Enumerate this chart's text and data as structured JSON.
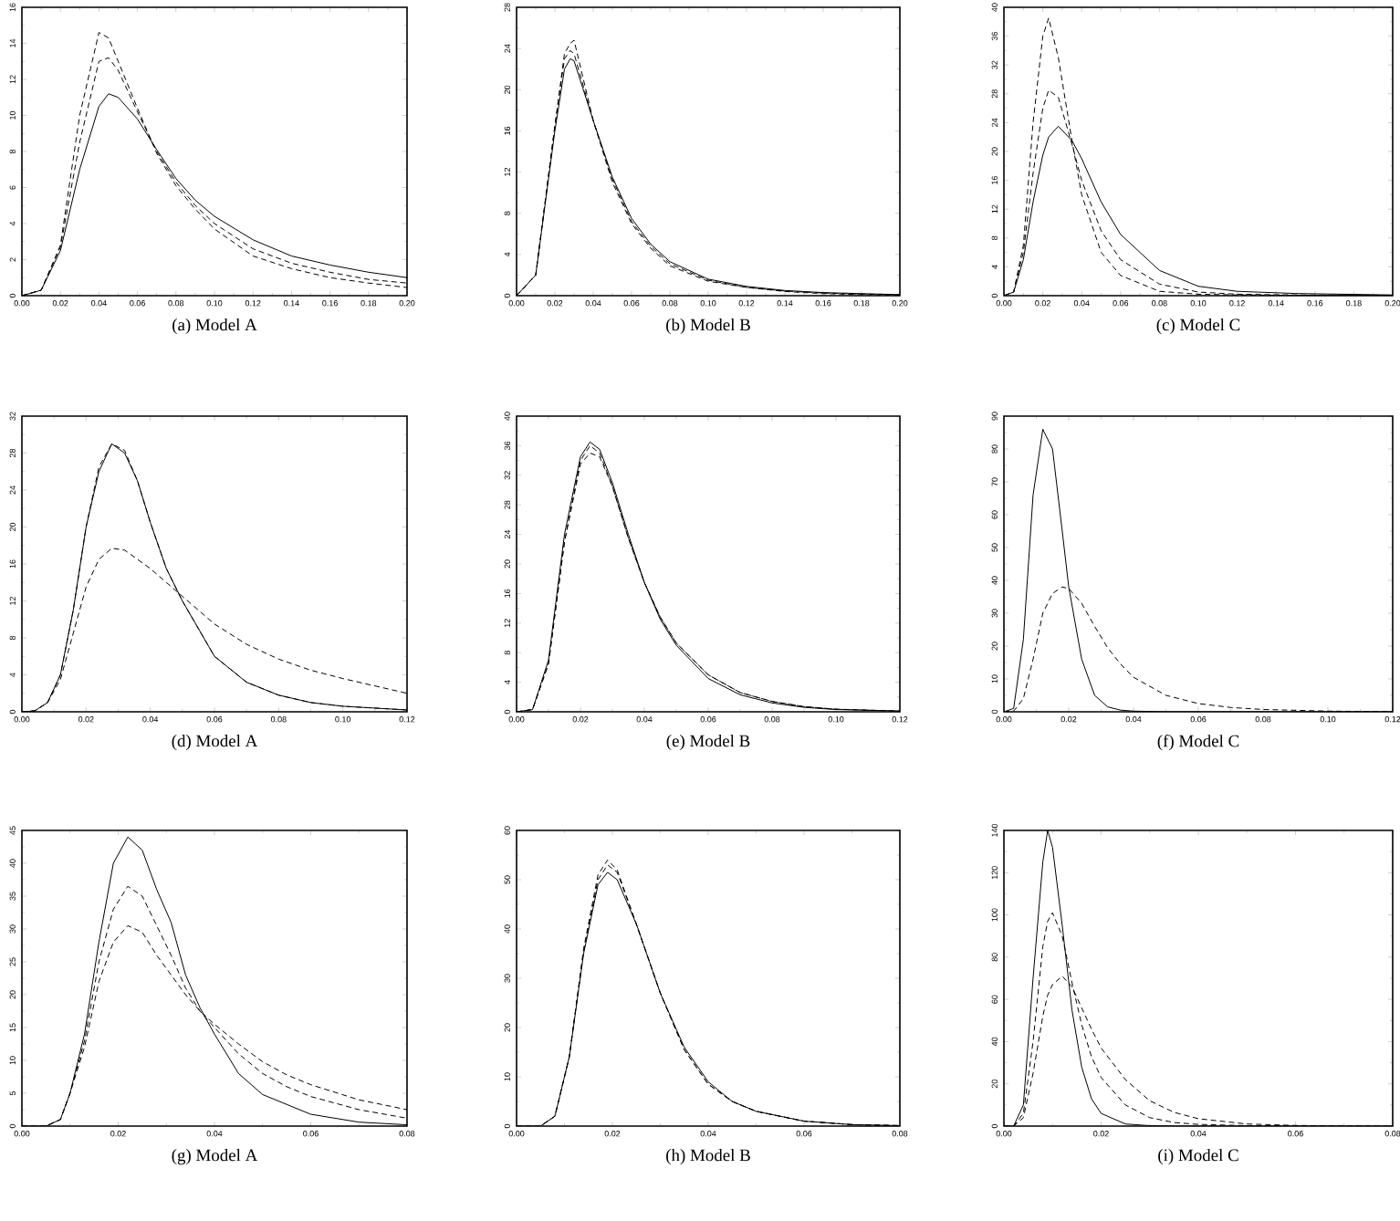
{
  "chart_data": [
    {
      "type": "line",
      "title": "(a) Model A",
      "x": [
        0,
        0.01,
        0.02,
        0.03,
        0.04,
        0.045,
        0.05,
        0.06,
        0.07,
        0.08,
        0.09,
        0.1,
        0.12,
        0.14,
        0.16,
        0.18,
        0.2
      ],
      "series": [
        {
          "color": "#000000",
          "line_style": "solid",
          "values": [
            0,
            0.3,
            2.5,
            7,
            10.5,
            11.2,
            11,
            9.8,
            8.1,
            6.5,
            5.3,
            4.4,
            3.1,
            2.2,
            1.7,
            1.3,
            1.0
          ]
        },
        {
          "color": "#000000",
          "line_style": "dashed",
          "values": [
            0,
            0.3,
            2.7,
            8.5,
            13,
            13.2,
            12.5,
            10.2,
            8.0,
            6.3,
            5.0,
            4.0,
            2.6,
            1.8,
            1.3,
            0.9,
            0.7
          ]
        },
        {
          "color": "#000000",
          "line_style": "dashed",
          "values": [
            0,
            0.3,
            2.8,
            10,
            14.6,
            14.3,
            13,
            10.4,
            7.9,
            6.1,
            4.8,
            3.7,
            2.2,
            1.5,
            1.0,
            0.7,
            0.45
          ]
        }
      ],
      "xlim": [
        0,
        0.2
      ],
      "ylim": [
        0,
        16
      ],
      "xticks": [
        {
          "value": 0,
          "label": "0.00"
        },
        {
          "value": 0.02,
          "label": "0.02"
        },
        {
          "value": 0.04,
          "label": "0.04"
        },
        {
          "value": 0.06,
          "label": "0.06"
        },
        {
          "value": 0.08,
          "label": "0.08"
        },
        {
          "value": 0.1,
          "label": "0.10"
        },
        {
          "value": 0.12,
          "label": "0.12"
        },
        {
          "value": 0.14,
          "label": "0.14"
        },
        {
          "value": 0.16,
          "label": "0.16"
        },
        {
          "value": 0.18,
          "label": "0.18"
        },
        {
          "value": 0.2,
          "label": "0.20"
        }
      ],
      "yticks": [
        0,
        2,
        4,
        6,
        8,
        10,
        12,
        14,
        16
      ]
    },
    {
      "type": "line",
      "title": "(b) Model B",
      "x": [
        0,
        0.01,
        0.02,
        0.025,
        0.028,
        0.03,
        0.04,
        0.05,
        0.06,
        0.07,
        0.08,
        0.1,
        0.12,
        0.14,
        0.16,
        0.18,
        0.2
      ],
      "series": [
        {
          "color": "#000000",
          "line_style": "solid",
          "values": [
            0,
            2,
            16,
            22,
            23,
            22.8,
            17,
            11.5,
            7.5,
            5,
            3.3,
            1.6,
            0.9,
            0.5,
            0.3,
            0.2,
            0.1
          ]
        },
        {
          "color": "#000000",
          "line_style": "dashed",
          "values": [
            0,
            2,
            16.5,
            23,
            23.8,
            23.5,
            17,
            11.3,
            7.2,
            4.8,
            3.1,
            1.5,
            0.8,
            0.45,
            0.25,
            0.15,
            0.1
          ]
        },
        {
          "color": "#000000",
          "line_style": "dashed",
          "values": [
            0,
            2,
            16.5,
            23.5,
            24.5,
            24.8,
            17,
            11,
            7,
            4.6,
            2.9,
            1.4,
            0.8,
            0.4,
            0.2,
            0.1,
            0.05
          ]
        }
      ],
      "xlim": [
        0,
        0.2
      ],
      "ylim": [
        0,
        28
      ],
      "xticks": [
        {
          "value": 0,
          "label": "0.00"
        },
        {
          "value": 0.02,
          "label": "0.02"
        },
        {
          "value": 0.04,
          "label": "0.04"
        },
        {
          "value": 0.06,
          "label": "0.06"
        },
        {
          "value": 0.08,
          "label": "0.08"
        },
        {
          "value": 0.1,
          "label": "0.10"
        },
        {
          "value": 0.12,
          "label": "0.12"
        },
        {
          "value": 0.14,
          "label": "0.14"
        },
        {
          "value": 0.16,
          "label": "0.16"
        },
        {
          "value": 0.18,
          "label": "0.18"
        },
        {
          "value": 0.2,
          "label": "0.20"
        }
      ],
      "yticks": [
        0,
        4,
        8,
        12,
        16,
        20,
        24,
        28
      ]
    },
    {
      "type": "line",
      "title": "(c) Model C",
      "x": [
        0,
        0.005,
        0.01,
        0.015,
        0.02,
        0.023,
        0.028,
        0.035,
        0.04,
        0.05,
        0.06,
        0.08,
        0.1,
        0.12,
        0.15,
        0.2
      ],
      "series": [
        {
          "color": "#000000",
          "line_style": "solid",
          "values": [
            0,
            0.5,
            5,
            13,
            19.5,
            22,
            23.5,
            21.5,
            19,
            13,
            8.5,
            3.5,
            1.3,
            0.6,
            0.3,
            0.1
          ]
        },
        {
          "color": "#000000",
          "line_style": "dashed",
          "values": [
            0,
            0.5,
            6,
            17,
            26,
            28.5,
            27.5,
            21,
            16,
            9,
            5,
            1.6,
            0.5,
            0.2,
            0.1,
            0.05
          ]
        },
        {
          "color": "#000000",
          "line_style": "dashed",
          "values": [
            0,
            0.5,
            7,
            24,
            36,
            38.5,
            33,
            21.5,
            14,
            6,
            2.8,
            0.6,
            0.2,
            0.1,
            0.05,
            0.02
          ]
        }
      ],
      "xlim": [
        0,
        0.2
      ],
      "ylim": [
        0,
        40
      ],
      "xticks": [
        {
          "value": 0,
          "label": "0.00"
        },
        {
          "value": 0.02,
          "label": "0.02"
        },
        {
          "value": 0.04,
          "label": "0.04"
        },
        {
          "value": 0.06,
          "label": "0.06"
        },
        {
          "value": 0.08,
          "label": "0.08"
        },
        {
          "value": 0.1,
          "label": "0.10"
        },
        {
          "value": 0.12,
          "label": "0.12"
        },
        {
          "value": 0.14,
          "label": "0.14"
        },
        {
          "value": 0.16,
          "label": "0.16"
        },
        {
          "value": 0.18,
          "label": "0.18"
        },
        {
          "value": 0.2,
          "label": "0.20"
        }
      ],
      "yticks": [
        0,
        4,
        8,
        12,
        16,
        20,
        24,
        28,
        32,
        36,
        40
      ]
    },
    {
      "type": "line",
      "title": "(d) Model A",
      "x": [
        0,
        0.004,
        0.008,
        0.012,
        0.016,
        0.02,
        0.024,
        0.028,
        0.032,
        0.036,
        0.04,
        0.045,
        0.05,
        0.06,
        0.07,
        0.08,
        0.09,
        0.1,
        0.12
      ],
      "series": [
        {
          "color": "#000000",
          "line_style": "solid",
          "values": [
            0,
            0.1,
            1,
            4,
            11,
            20,
            26,
            29,
            28,
            25,
            20.5,
            15.5,
            12,
            6,
            3.2,
            1.8,
            1,
            0.6,
            0.2
          ]
        },
        {
          "color": "#000000",
          "line_style": "dashed",
          "values": [
            0,
            0.1,
            1,
            4,
            11,
            20,
            26.5,
            29,
            28.3,
            25,
            20.5,
            15.5,
            12,
            6,
            3.2,
            1.8,
            1,
            0.6,
            0.2
          ]
        },
        {
          "color": "#000000",
          "line_style": "dashed",
          "values": [
            0,
            0.1,
            1,
            3.5,
            8.5,
            13.5,
            16.5,
            17.7,
            17.5,
            16.5,
            15.5,
            14,
            12.5,
            9.5,
            7.3,
            5.7,
            4.5,
            3.6,
            2
          ]
        }
      ],
      "xlim": [
        0,
        0.12
      ],
      "ylim": [
        0,
        32
      ],
      "xticks": [
        {
          "value": 0,
          "label": "0.00"
        },
        {
          "value": 0.02,
          "label": "0.02"
        },
        {
          "value": 0.04,
          "label": "0.04"
        },
        {
          "value": 0.06,
          "label": "0.06"
        },
        {
          "value": 0.08,
          "label": "0.08"
        },
        {
          "value": 0.1,
          "label": "0.10"
        },
        {
          "value": 0.12,
          "label": "0.12"
        }
      ],
      "yticks": [
        0,
        4,
        8,
        12,
        16,
        20,
        24,
        28,
        32
      ]
    },
    {
      "type": "line",
      "title": "(e) Model B",
      "x": [
        0,
        0.005,
        0.01,
        0.015,
        0.02,
        0.023,
        0.026,
        0.03,
        0.035,
        0.04,
        0.045,
        0.05,
        0.06,
        0.07,
        0.08,
        0.09,
        0.1,
        0.12
      ],
      "series": [
        {
          "color": "#000000",
          "line_style": "solid",
          "values": [
            0,
            0.3,
            7,
            24,
            34.5,
            36.5,
            35.5,
            31,
            24,
            17.5,
            12.5,
            9,
            4.5,
            2.3,
            1.2,
            0.6,
            0.3,
            0.1
          ]
        },
        {
          "color": "#000000",
          "line_style": "dashed",
          "values": [
            0,
            0.3,
            6.5,
            23,
            34,
            36,
            35,
            30.5,
            23.5,
            17.5,
            12.8,
            9.3,
            5,
            2.6,
            1.4,
            0.7,
            0.35,
            0.1
          ]
        },
        {
          "color": "#000000",
          "line_style": "dashed",
          "values": [
            0,
            0.3,
            6.5,
            23,
            33.5,
            35,
            34.5,
            30.5,
            23.5,
            17.5,
            12.8,
            9.3,
            5,
            2.6,
            1.4,
            0.7,
            0.35,
            0.1
          ]
        }
      ],
      "xlim": [
        0,
        0.12
      ],
      "ylim": [
        0,
        40
      ],
      "xticks": [
        {
          "value": 0,
          "label": "0.00"
        },
        {
          "value": 0.02,
          "label": "0.02"
        },
        {
          "value": 0.04,
          "label": "0.04"
        },
        {
          "value": 0.06,
          "label": "0.06"
        },
        {
          "value": 0.08,
          "label": "0.08"
        },
        {
          "value": 0.1,
          "label": "0.10"
        },
        {
          "value": 0.12,
          "label": "0.12"
        }
      ],
      "yticks": [
        0,
        4,
        8,
        12,
        16,
        20,
        24,
        28,
        32,
        36,
        40
      ]
    },
    {
      "type": "line",
      "title": "(f) Model C",
      "x": [
        0,
        0.003,
        0.006,
        0.009,
        0.012,
        0.015,
        0.018,
        0.02,
        0.024,
        0.028,
        0.032,
        0.036,
        0.04,
        0.05,
        0.06,
        0.07,
        0.08,
        0.1,
        0.12
      ],
      "series": [
        {
          "color": "#000000",
          "line_style": "solid",
          "values": [
            0,
            1,
            22,
            66,
            86,
            80,
            55,
            38,
            16,
            5,
            1.5,
            0.5,
            0.2,
            0,
            0,
            0,
            0,
            0,
            0
          ]
        },
        {
          "color": "#000000",
          "line_style": "dashed",
          "values": [
            0,
            0.2,
            4,
            16,
            30,
            36,
            38,
            37.5,
            33,
            26,
            19.5,
            14.5,
            10.5,
            5,
            2.5,
            1.3,
            0.7,
            0.2,
            0.05
          ]
        }
      ],
      "xlim": [
        0,
        0.12
      ],
      "ylim": [
        0,
        90
      ],
      "xticks": [
        {
          "value": 0,
          "label": "0.00"
        },
        {
          "value": 0.02,
          "label": "0.02"
        },
        {
          "value": 0.04,
          "label": "0.04"
        },
        {
          "value": 0.06,
          "label": "0.06"
        },
        {
          "value": 0.08,
          "label": "0.08"
        },
        {
          "value": 0.1,
          "label": "0.10"
        },
        {
          "value": 0.12,
          "label": "0.12"
        }
      ],
      "yticks": [
        0,
        10,
        20,
        30,
        40,
        50,
        60,
        70,
        80,
        90
      ]
    },
    {
      "type": "line",
      "title": "(g) Model A",
      "x": [
        0,
        0.005,
        0.008,
        0.01,
        0.013,
        0.016,
        0.019,
        0.022,
        0.025,
        0.028,
        0.031,
        0.034,
        0.037,
        0.04,
        0.045,
        0.05,
        0.055,
        0.06,
        0.07,
        0.08
      ],
      "series": [
        {
          "color": "#000000",
          "line_style": "solid",
          "values": [
            0,
            0,
            1,
            5,
            14,
            28,
            40,
            44,
            42,
            36,
            31,
            23,
            18,
            14,
            8,
            4.8,
            3.3,
            1.8,
            0.6,
            0.2
          ]
        },
        {
          "color": "#000000",
          "line_style": "dashed",
          "values": [
            0,
            0,
            1,
            5,
            13,
            25,
            33,
            36.5,
            35,
            30.5,
            26,
            21,
            17.5,
            15,
            11,
            8,
            6,
            4.5,
            2.5,
            1.2
          ]
        },
        {
          "color": "#000000",
          "line_style": "dashed",
          "values": [
            0,
            0,
            1,
            5,
            12,
            22,
            28,
            30.5,
            29.5,
            26,
            23,
            20,
            17.5,
            15.5,
            12.5,
            9.8,
            7.8,
            6.3,
            4,
            2.5
          ]
        }
      ],
      "xlim": [
        0,
        0.08
      ],
      "ylim": [
        0,
        45
      ],
      "xticks": [
        {
          "value": 0,
          "label": "0.00"
        },
        {
          "value": 0.02,
          "label": "0.02"
        },
        {
          "value": 0.04,
          "label": "0.04"
        },
        {
          "value": 0.06,
          "label": "0.06"
        },
        {
          "value": 0.08,
          "label": "0.08"
        }
      ],
      "yticks": [
        0,
        5,
        10,
        15,
        20,
        25,
        30,
        35,
        40,
        45
      ]
    },
    {
      "type": "line",
      "title": "(h) Model B",
      "x": [
        0,
        0.005,
        0.008,
        0.011,
        0.014,
        0.017,
        0.019,
        0.021,
        0.025,
        0.03,
        0.035,
        0.04,
        0.045,
        0.05,
        0.06,
        0.07,
        0.08
      ],
      "series": [
        {
          "color": "#000000",
          "line_style": "solid",
          "values": [
            0,
            0,
            2,
            14,
            35,
            49,
            51.5,
            50,
            41,
            27,
            16,
            9,
            5,
            3,
            1,
            0.3,
            0.1
          ]
        },
        {
          "color": "#000000",
          "line_style": "dashed",
          "values": [
            0,
            0,
            2,
            14,
            36,
            51,
            54,
            52,
            41,
            27,
            15.5,
            8.5,
            5,
            3,
            1,
            0.3,
            0.1
          ]
        },
        {
          "color": "#000000",
          "line_style": "dashed",
          "values": [
            0,
            0,
            2,
            14,
            35.5,
            50,
            53,
            51.5,
            41,
            27,
            15.5,
            8.5,
            5,
            3,
            1,
            0.3,
            0.1
          ]
        }
      ],
      "xlim": [
        0,
        0.08
      ],
      "ylim": [
        0,
        60
      ],
      "xticks": [
        {
          "value": 0,
          "label": "0.00"
        },
        {
          "value": 0.02,
          "label": "0.02"
        },
        {
          "value": 0.04,
          "label": "0.04"
        },
        {
          "value": 0.06,
          "label": "0.06"
        },
        {
          "value": 0.08,
          "label": "0.08"
        }
      ],
      "yticks": [
        0,
        10,
        20,
        30,
        40,
        50,
        60
      ]
    },
    {
      "type": "line",
      "title": "(i) Model C",
      "x": [
        0,
        0.002,
        0.004,
        0.006,
        0.008,
        0.009,
        0.01,
        0.012,
        0.014,
        0.016,
        0.018,
        0.02,
        0.025,
        0.03,
        0.035,
        0.04,
        0.05,
        0.06,
        0.07,
        0.08
      ],
      "series": [
        {
          "color": "#000000",
          "line_style": "solid",
          "values": [
            0,
            0,
            10,
            70,
            125,
            140,
            132,
            95,
            55,
            28,
            13,
            6,
            1,
            0.2,
            0,
            0,
            0,
            0,
            0,
            0
          ]
        },
        {
          "color": "#000000",
          "line_style": "dashed",
          "values": [
            0,
            0,
            6,
            40,
            85,
            97,
            101,
            90,
            68,
            48,
            33,
            23,
            10,
            4,
            1.7,
            0.8,
            0.2,
            0.05,
            0,
            0
          ]
        },
        {
          "color": "#000000",
          "line_style": "dashed",
          "values": [
            0,
            0,
            4,
            25,
            52,
            62,
            67,
            71,
            66,
            56,
            46,
            37,
            22,
            12,
            6.5,
            3.5,
            1,
            0.3,
            0.1,
            0
          ]
        }
      ],
      "xlim": [
        0,
        0.08
      ],
      "ylim": [
        0,
        140
      ],
      "xticks": [
        {
          "value": 0,
          "label": "0.00"
        },
        {
          "value": 0.02,
          "label": "0.02"
        },
        {
          "value": 0.04,
          "label": "0.04"
        },
        {
          "value": 0.06,
          "label": "0.06"
        },
        {
          "value": 0.08,
          "label": "0.08"
        }
      ],
      "yticks": [
        0,
        20,
        40,
        60,
        80,
        100,
        120,
        140
      ]
    }
  ]
}
